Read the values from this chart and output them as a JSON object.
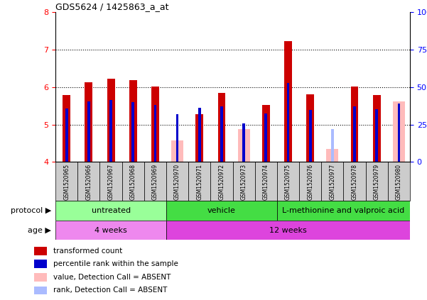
{
  "title": "GDS5624 / 1425863_a_at",
  "samples": [
    "GSM1520965",
    "GSM1520966",
    "GSM1520967",
    "GSM1520968",
    "GSM1520969",
    "GSM1520970",
    "GSM1520971",
    "GSM1520972",
    "GSM1520973",
    "GSM1520974",
    "GSM1520975",
    "GSM1520976",
    "GSM1520977",
    "GSM1520978",
    "GSM1520979",
    "GSM1520980"
  ],
  "red_values": [
    5.78,
    6.12,
    6.22,
    6.18,
    6.02,
    null,
    5.28,
    5.84,
    null,
    5.52,
    7.22,
    5.8,
    null,
    6.02,
    5.78,
    null
  ],
  "blue_values": [
    5.42,
    5.62,
    5.65,
    5.6,
    5.52,
    5.28,
    5.45,
    5.48,
    5.02,
    5.3,
    6.1,
    5.38,
    null,
    5.48,
    5.4,
    5.55
  ],
  "pink_values": [
    null,
    null,
    null,
    null,
    null,
    4.58,
    null,
    null,
    4.87,
    null,
    null,
    null,
    4.35,
    null,
    null,
    5.62
  ],
  "lightblue_values": [
    null,
    null,
    null,
    null,
    null,
    4.92,
    null,
    null,
    5.02,
    null,
    null,
    null,
    4.88,
    null,
    null,
    null
  ],
  "ylim": [
    4,
    8
  ],
  "yticks": [
    4,
    5,
    6,
    7,
    8
  ],
  "right_yticks_vals": [
    0,
    25,
    50,
    75,
    100
  ],
  "right_yticks_labels": [
    "0",
    "25",
    "50",
    "75",
    "100%"
  ],
  "red_color": "#cc0000",
  "blue_color": "#0000cc",
  "pink_color": "#ffbbbb",
  "lightblue_color": "#aabbff",
  "protocol_spans": [
    {
      "label": "untreated",
      "start": 0,
      "end": 4,
      "color": "#99ff99"
    },
    {
      "label": "vehicle",
      "start": 5,
      "end": 9,
      "color": "#44dd44"
    },
    {
      "label": "L-methionine and valproic acid",
      "start": 10,
      "end": 15,
      "color": "#44dd44"
    }
  ],
  "age_spans": [
    {
      "label": "4 weeks",
      "start": 0,
      "end": 4,
      "color": "#ee88ee"
    },
    {
      "label": "12 weeks",
      "start": 5,
      "end": 15,
      "color": "#dd44dd"
    }
  ],
  "legend_labels": [
    "transformed count",
    "percentile rank within the sample",
    "value, Detection Call = ABSENT",
    "rank, Detection Call = ABSENT"
  ]
}
